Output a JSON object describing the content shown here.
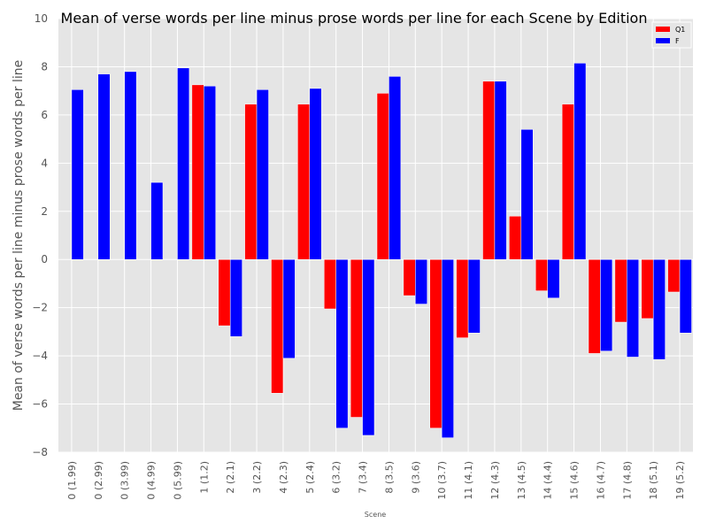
{
  "chart_data": {
    "type": "bar",
    "title": "Mean of verse words per line minus prose words per line for each Scene by Edition",
    "xlabel": "Scene",
    "ylabel": "Mean of verse words per line minus prose words per line",
    "ylim": [
      -8,
      10
    ],
    "yticks": [
      -8,
      -6,
      -4,
      -2,
      0,
      2,
      4,
      6,
      8,
      10
    ],
    "ytick_labels": [
      "−8",
      "−6",
      "−4",
      "−2",
      "0",
      "2",
      "4",
      "6",
      "8",
      "10"
    ],
    "grid": true,
    "legend_position": "top-right",
    "categories": [
      "0 (1.99)",
      "0 (2.99)",
      "0 (3.99)",
      "0 (4.99)",
      "0 (5.99)",
      "1 (1.2)",
      "2 (2.1)",
      "3 (2.2)",
      "4 (2.3)",
      "5 (2.4)",
      "6 (3.2)",
      "7 (3.4)",
      "8 (3.5)",
      "9 (3.6)",
      "10 (3.7)",
      "11 (4.1)",
      "12 (4.3)",
      "13 (4.5)",
      "14 (4.4)",
      "15 (4.6)",
      "16 (4.7)",
      "17 (4.8)",
      "18 (5.1)",
      "19 (5.2)"
    ],
    "series": [
      {
        "name": "Q1",
        "color": "#ff0000",
        "values": [
          null,
          null,
          null,
          null,
          null,
          7.25,
          -2.75,
          6.45,
          -5.55,
          6.45,
          -2.05,
          -6.55,
          6.9,
          -1.5,
          -7.0,
          -3.25,
          7.4,
          1.8,
          -1.3,
          6.45,
          -3.9,
          -2.6,
          -2.45,
          -1.35
        ]
      },
      {
        "name": "F",
        "color": "#0000ff",
        "values": [
          7.05,
          7.7,
          7.8,
          3.2,
          7.95,
          7.2,
          -3.2,
          7.05,
          -4.1,
          7.1,
          -7.0,
          -7.3,
          7.6,
          -1.85,
          -7.4,
          -3.05,
          7.4,
          5.4,
          -1.6,
          8.15,
          -3.8,
          -4.05,
          -4.15,
          -3.05
        ]
      }
    ]
  }
}
